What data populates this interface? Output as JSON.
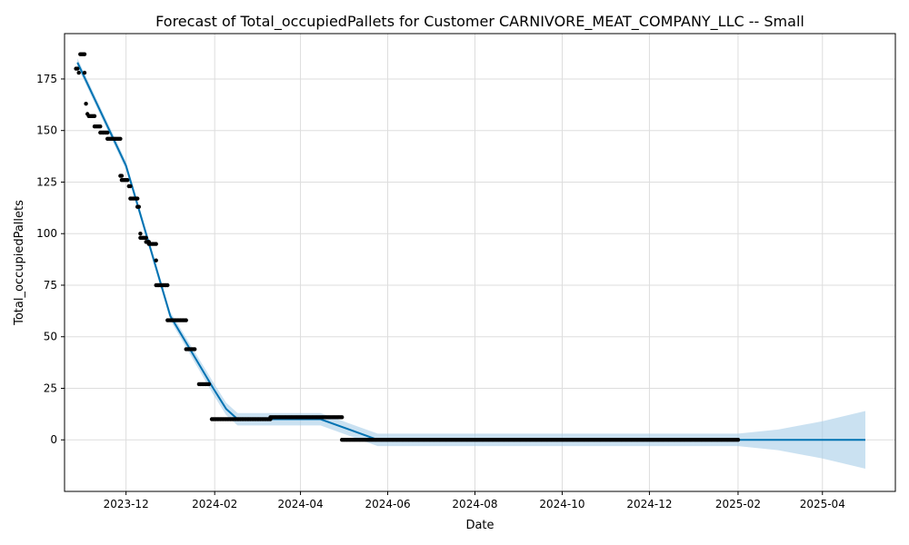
{
  "chart_data": {
    "type": "line",
    "title": "Forecast of Total_occupiedPallets for Customer CARNIVORE_MEAT_COMPANY_LLC -- Small",
    "xlabel": "Date",
    "ylabel": "Total_occupiedPallets",
    "xlim": [
      "2023-10-19",
      "2025-05-22"
    ],
    "ylim": [
      -25,
      197
    ],
    "grid": true,
    "colors": {
      "forecast_line": "#0072b2",
      "uncertainty_band": "#a6cde7",
      "observed_points": "#000000",
      "grid": "#dddddd"
    },
    "x_ticks": [
      {
        "date": "2023-12-01",
        "label": "2023-12"
      },
      {
        "date": "2024-02-01",
        "label": "2024-02"
      },
      {
        "date": "2024-04-01",
        "label": "2024-04"
      },
      {
        "date": "2024-06-01",
        "label": "2024-06"
      },
      {
        "date": "2024-08-01",
        "label": "2024-08"
      },
      {
        "date": "2024-10-01",
        "label": "2024-10"
      },
      {
        "date": "2024-12-01",
        "label": "2024-12"
      },
      {
        "date": "2025-02-01",
        "label": "2025-02"
      },
      {
        "date": "2025-04-01",
        "label": "2025-04"
      }
    ],
    "y_ticks": [
      0,
      25,
      50,
      75,
      100,
      125,
      150,
      175
    ],
    "forecast": [
      {
        "date": "2023-10-28",
        "yhat": 183,
        "lower": 181,
        "upper": 185
      },
      {
        "date": "2023-12-01",
        "yhat": 133,
        "lower": 131,
        "upper": 135
      },
      {
        "date": "2024-01-01",
        "yhat": 60,
        "lower": 58,
        "upper": 62
      },
      {
        "date": "2024-01-31",
        "yhat": 25,
        "lower": 22,
        "upper": 28
      },
      {
        "date": "2024-02-09",
        "yhat": 15,
        "lower": 12,
        "upper": 18
      },
      {
        "date": "2024-02-17",
        "yhat": 10,
        "lower": 7,
        "upper": 13
      },
      {
        "date": "2024-03-15",
        "yhat": 10,
        "lower": 7,
        "upper": 13
      },
      {
        "date": "2024-04-15",
        "yhat": 10,
        "lower": 7,
        "upper": 13
      },
      {
        "date": "2024-05-25",
        "yhat": 0,
        "lower": -3,
        "upper": 3
      },
      {
        "date": "2025-02-01",
        "yhat": 0,
        "lower": -3,
        "upper": 3
      },
      {
        "date": "2025-03-01",
        "yhat": 0,
        "lower": -5,
        "upper": 5
      },
      {
        "date": "2025-04-01",
        "yhat": 0,
        "lower": -9,
        "upper": 9
      },
      {
        "date": "2025-05-01",
        "yhat": 0,
        "lower": -14,
        "upper": 14
      }
    ],
    "observed_runs": [
      {
        "start": "2023-10-27",
        "end": "2023-10-28",
        "value": 180
      },
      {
        "start": "2023-10-29",
        "end": "2023-10-29",
        "value": 178
      },
      {
        "start": "2023-10-30",
        "end": "2023-11-02",
        "value": 187
      },
      {
        "start": "2023-11-02",
        "end": "2023-11-02",
        "value": 178
      },
      {
        "start": "2023-11-03",
        "end": "2023-11-03",
        "value": 163
      },
      {
        "start": "2023-11-04",
        "end": "2023-11-04",
        "value": 158
      },
      {
        "start": "2023-11-05",
        "end": "2023-11-09",
        "value": 157
      },
      {
        "start": "2023-11-09",
        "end": "2023-11-13",
        "value": 152
      },
      {
        "start": "2023-11-13",
        "end": "2023-11-18",
        "value": 149
      },
      {
        "start": "2023-11-18",
        "end": "2023-11-27",
        "value": 146
      },
      {
        "start": "2023-11-27",
        "end": "2023-11-28",
        "value": 128
      },
      {
        "start": "2023-11-28",
        "end": "2023-12-02",
        "value": 126
      },
      {
        "start": "2023-12-03",
        "end": "2023-12-04",
        "value": 123
      },
      {
        "start": "2023-12-04",
        "end": "2023-12-09",
        "value": 117
      },
      {
        "start": "2023-12-09",
        "end": "2023-12-10",
        "value": 113
      },
      {
        "start": "2023-12-11",
        "end": "2023-12-11",
        "value": 100
      },
      {
        "start": "2023-12-11",
        "end": "2023-12-15",
        "value": 98
      },
      {
        "start": "2023-12-15",
        "end": "2023-12-17",
        "value": 96
      },
      {
        "start": "2023-12-17",
        "end": "2023-12-22",
        "value": 95
      },
      {
        "start": "2023-12-22",
        "end": "2023-12-22",
        "value": 87
      },
      {
        "start": "2023-12-22",
        "end": "2023-12-30",
        "value": 75
      },
      {
        "start": "2023-12-30",
        "end": "2024-01-12",
        "value": 58
      },
      {
        "start": "2024-01-12",
        "end": "2024-01-18",
        "value": 44
      },
      {
        "start": "2024-01-21",
        "end": "2024-01-28",
        "value": 27
      },
      {
        "start": "2024-01-30",
        "end": "2024-03-11",
        "value": 10
      },
      {
        "start": "2024-03-11",
        "end": "2024-04-30",
        "value": 11
      },
      {
        "start": "2024-04-30",
        "end": "2025-02-01",
        "value": 0
      }
    ]
  }
}
